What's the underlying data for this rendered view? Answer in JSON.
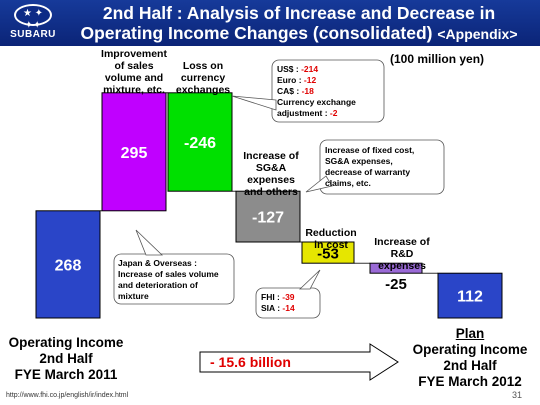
{
  "header": {
    "brand": "SUBARU",
    "logo_stars": "★ ✦ ✦✦",
    "title_line1": "2nd Half : Analysis of Increase and Decrease in",
    "title_line2": "Operating Income Changes (consolidated)",
    "title_suffix": "<Appendix>"
  },
  "unit_label": "(100 million yen)",
  "chart_data": {
    "type": "bar",
    "subtype": "waterfall",
    "categories": [
      "Operating Income 2nd Half FYE March 2011",
      "Improvement of sales volume and mixture, etc.",
      "Loss on currency exchanges",
      "Increase of SG&A expenses and others",
      "Reduction in cost",
      "Increase of R&D expenses",
      "Plan Operating Income 2nd Half FYE March 2012"
    ],
    "values": [
      268,
      295,
      -246,
      -127,
      -53,
      -25,
      112
    ],
    "value_labels": [
      "268",
      "295",
      "-246",
      "-127",
      "-53",
      "-25",
      "112"
    ],
    "colors": [
      "#2a45c8",
      "#c000ff",
      "#00e000",
      "#8c8c8c",
      "#e6e600",
      "#9a6ad6",
      "#2a45c8"
    ]
  },
  "labels": {
    "improvement": [
      "Improvement",
      "of sales",
      "volume and",
      "mixture, etc."
    ],
    "currency": [
      "Loss on",
      "currency",
      "exchanges"
    ],
    "sga": [
      "Increase of",
      "SG&A",
      "expenses",
      "and others"
    ],
    "cost": [
      "Reduction",
      "in cost"
    ],
    "rd": [
      "Increase of",
      "R&D",
      "expenses"
    ],
    "left_axis": [
      "Operating Income",
      "2nd Half",
      "FYE March 2011"
    ],
    "right_plan": "Plan",
    "right_axis": [
      "Operating Income",
      "2nd Half",
      "FYE March 2012"
    ]
  },
  "notes": {
    "currency_items": [
      {
        "label": "US$ : ",
        "value": "-214"
      },
      {
        "label": "Euro : ",
        "value": "-12"
      },
      {
        "label": "CA$ : ",
        "value": "-18"
      }
    ],
    "currency_adjust_label": "Currency exchange",
    "currency_adjust_prefix": "adjustment : ",
    "currency_adjust_value": "-2",
    "sga_note": [
      "Increase of fixed cost,",
      "SG&A expenses,",
      "decrease of warranty",
      "claims, etc."
    ],
    "improvement_note_title": "Japan & Overseas :",
    "improvement_note": [
      "Increase of sales volume",
      "and deterioration of",
      "mixture"
    ],
    "cost_items": [
      {
        "label": "FHI : ",
        "value": "-39"
      },
      {
        "label": "SIA : ",
        "value": "-14"
      }
    ]
  },
  "change_arrow": "- 15.6 billion",
  "footer": {
    "url": "http://www.fhi.co.jp/english/ir/index.html",
    "page": "31"
  }
}
